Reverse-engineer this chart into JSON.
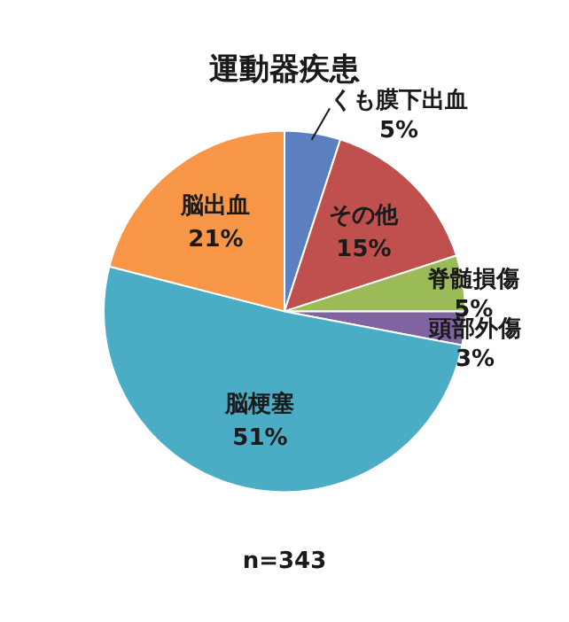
{
  "chart_data": {
    "type": "pie",
    "title": "運動器疾患",
    "categories": [
      "くも膜下出血",
      "その他",
      "脊髄損傷",
      "頭部外傷",
      "脳梗塞",
      "脳出血"
    ],
    "values": [
      5,
      15,
      5,
      3,
      51,
      21
    ],
    "value_labels": [
      "5%",
      "15%",
      "5%",
      "3%",
      "51%",
      "21%"
    ],
    "colors": [
      "#5b7fbf",
      "#c0504d",
      "#9bbb59",
      "#8064a2",
      "#4bacc6",
      "#f79646"
    ],
    "annotations": [
      "n=343"
    ],
    "legend": false
  }
}
